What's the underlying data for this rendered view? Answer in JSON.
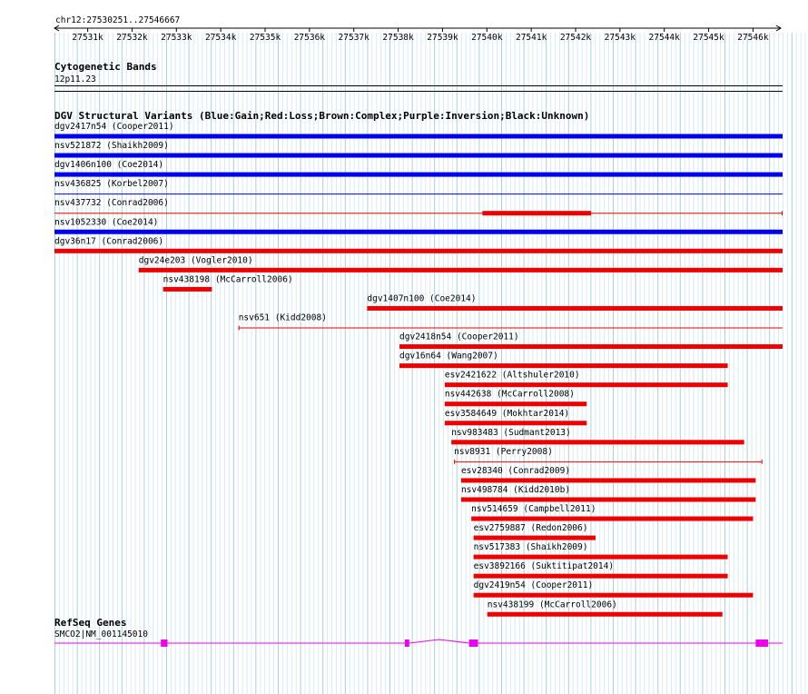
{
  "region": {
    "label": "chr12:27530251..27546667",
    "start": 27530251,
    "end": 27546667
  },
  "ruler": {
    "ticks": [
      {
        "pos": 27531000,
        "label": "27531k"
      },
      {
        "pos": 27532000,
        "label": "27532k"
      },
      {
        "pos": 27533000,
        "label": "27533k"
      },
      {
        "pos": 27534000,
        "label": "27534k"
      },
      {
        "pos": 27535000,
        "label": "27535k"
      },
      {
        "pos": 27536000,
        "label": "27536k"
      },
      {
        "pos": 27537000,
        "label": "27537k"
      },
      {
        "pos": 27538000,
        "label": "27538k"
      },
      {
        "pos": 27539000,
        "label": "27539k"
      },
      {
        "pos": 27540000,
        "label": "27540k"
      },
      {
        "pos": 27541000,
        "label": "27541k"
      },
      {
        "pos": 27542000,
        "label": "27542k"
      },
      {
        "pos": 27543000,
        "label": "27543k"
      },
      {
        "pos": 27544000,
        "label": "27544k"
      },
      {
        "pos": 27545000,
        "label": "27545k"
      },
      {
        "pos": 27546000,
        "label": "27546k"
      }
    ]
  },
  "cytoband": {
    "title": "Cytogenetic Bands",
    "band": "12p11.23"
  },
  "dgv": {
    "title": "DGV Structural Variants (Blue:Gain;Red:Loss;Brown:Complex;Purple:Inversion;Black:Unknown)",
    "colors": {
      "gain": "#0000ee",
      "loss": "#ee0000"
    },
    "variants": [
      {
        "label": "dgv2417n54 (Cooper2011)",
        "type": "gain",
        "start": 27530251,
        "end": 27546667,
        "style": "thick"
      },
      {
        "label": "nsv521872 (Shaikh2009)",
        "type": "gain",
        "start": 27530251,
        "end": 27546667,
        "style": "thick"
      },
      {
        "label": "dgv1406n100 (Coe2014)",
        "type": "gain",
        "start": 27530251,
        "end": 27546667,
        "style": "thick"
      },
      {
        "label": "nsv436825 (Korbel2007)",
        "type": "gain",
        "start": 27530251,
        "end": 27546667,
        "style": "thin"
      },
      {
        "label": "nsv437732 (Conrad2006)",
        "type": "loss",
        "start": 27530251,
        "end": 27546667,
        "style": "inner",
        "inner_start": 27539900,
        "inner_end": 27542350,
        "start_tick": false,
        "end_tick": true
      },
      {
        "label": "nsv1052330 (Coe2014)",
        "type": "gain",
        "start": 27530251,
        "end": 27546667,
        "style": "thick"
      },
      {
        "label": "dgv36n17 (Conrad2006)",
        "type": "loss",
        "start": 27530251,
        "end": 27546667,
        "style": "thick"
      },
      {
        "label": "dgv24e203 (Vogler2010)",
        "type": "loss",
        "start": 27532150,
        "end": 27546667,
        "style": "thick"
      },
      {
        "label": "nsv438198 (McCarroll2006)",
        "type": "loss",
        "start": 27532700,
        "end": 27533800,
        "style": "thick"
      },
      {
        "label": "dgv1407n100 (Coe2014)",
        "type": "loss",
        "start": 27537300,
        "end": 27546667,
        "style": "thick"
      },
      {
        "label": "nsv651 (Kidd2008)",
        "type": "loss",
        "start": 27534400,
        "end": 27546667,
        "style": "thin",
        "start_tick": true,
        "end_tick": false
      },
      {
        "label": "dgv2418n54 (Cooper2011)",
        "type": "loss",
        "start": 27538030,
        "end": 27546667,
        "style": "thick"
      },
      {
        "label": "dgv16n64 (Wang2007)",
        "type": "loss",
        "start": 27538030,
        "end": 27545430,
        "style": "thick"
      },
      {
        "label": "esv2421622 (Altshuler2010)",
        "type": "loss",
        "start": 27539050,
        "end": 27545430,
        "style": "thick"
      },
      {
        "label": "nsv442638 (McCarroll2008)",
        "type": "loss",
        "start": 27539050,
        "end": 27542250,
        "style": "thick"
      },
      {
        "label": "esv3584649 (Mokhtar2014)",
        "type": "loss",
        "start": 27539050,
        "end": 27542250,
        "style": "thick"
      },
      {
        "label": "nsv983483 (Sudmant2013)",
        "type": "loss",
        "start": 27539200,
        "end": 27545800,
        "style": "thick"
      },
      {
        "label": "nsv8931 (Perry2008)",
        "type": "loss",
        "start": 27539260,
        "end": 27546210,
        "style": "thin",
        "start_tick": true,
        "end_tick": true
      },
      {
        "label": "esv28340 (Conrad2009)",
        "type": "loss",
        "start": 27539420,
        "end": 27546060,
        "style": "thick"
      },
      {
        "label": "nsv498784 (Kidd2010b)",
        "type": "loss",
        "start": 27539420,
        "end": 27546060,
        "style": "thick"
      },
      {
        "label": "nsv514659 (Campbell2011)",
        "type": "loss",
        "start": 27539650,
        "end": 27546000,
        "style": "thick"
      },
      {
        "label": "esv2759887 (Redon2006)",
        "type": "loss",
        "start": 27539700,
        "end": 27542450,
        "style": "thick"
      },
      {
        "label": "nsv517383 (Shaikh2009)",
        "type": "loss",
        "start": 27539700,
        "end": 27545430,
        "style": "thick"
      },
      {
        "label": "esv3892166 (Suktitipat2014)",
        "type": "loss",
        "start": 27539700,
        "end": 27545430,
        "style": "thick"
      },
      {
        "label": "dgv2419n54 (Cooper2011)",
        "type": "loss",
        "start": 27539700,
        "end": 27546000,
        "style": "thick"
      },
      {
        "label": "nsv438199 (McCarroll2006)",
        "type": "loss",
        "start": 27540010,
        "end": 27545310,
        "style": "thick"
      }
    ]
  },
  "refseq": {
    "title": "RefSeq Genes",
    "gene_label": "SMCO2|NM_001145010",
    "color": "#ee00ee",
    "exons": [
      {
        "start": 27532650,
        "end": 27532800
      },
      {
        "start": 27538150,
        "end": 27538250
      },
      {
        "start": 27539600,
        "end": 27539800
      },
      {
        "start": 27546060,
        "end": 27546340
      }
    ]
  }
}
